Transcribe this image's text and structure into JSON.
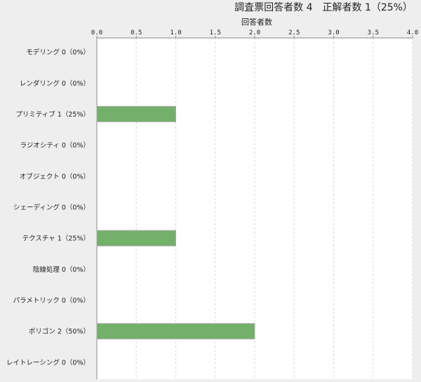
{
  "chart_data": {
    "type": "bar",
    "orientation": "horizontal",
    "title": "調査票回答者数 4　正解者数 1（25%）",
    "xlabel": "回答者数",
    "ylabel": "",
    "xlim": [
      0,
      4.0
    ],
    "ticks": [
      "0.0",
      "0.5",
      "1.0",
      "1.5",
      "2.0",
      "2.5",
      "3.0",
      "3.5",
      "4.0"
    ],
    "tick_values": [
      0,
      0.5,
      1,
      1.5,
      2,
      2.5,
      3,
      3.5,
      4
    ],
    "grid": true,
    "axis_position": "top",
    "categories": [
      "モデリング 0（0%）",
      "レンダリング 0（0%）",
      "プリミティブ 1（25%）",
      "ラジオシティ 0（0%）",
      "オブジェクト 0（0%）",
      "シェーディング 0（0%）",
      "テクスチャ 1（25%）",
      "陰線処理 0（0%）",
      "パラメトリック 0（0%）",
      "ポリゴン 2（50%）",
      "レイトレーシング 0（0%）"
    ],
    "values": [
      0,
      0,
      1,
      0,
      0,
      0,
      1,
      0,
      0,
      2,
      0
    ],
    "bar_color": "#73b06a"
  }
}
